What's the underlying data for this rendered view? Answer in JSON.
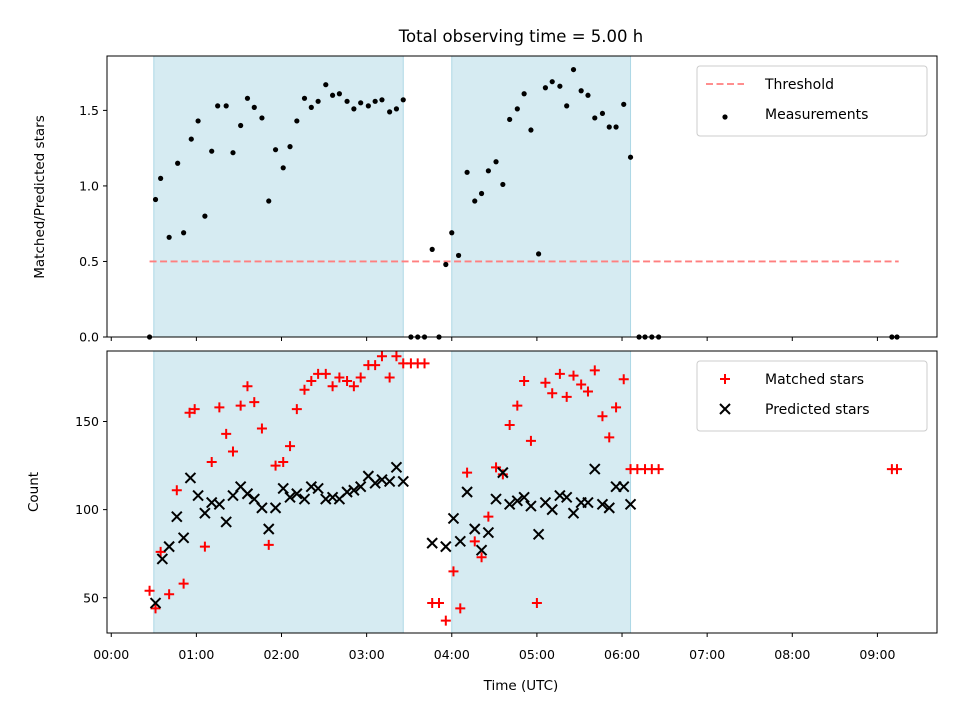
{
  "title": "Total observing time = 5.00 h",
  "colors": {
    "shade": "#add8e6",
    "threshold": "#ff7f7f",
    "measurement": "#000000",
    "matched": "#ff0000",
    "predicted": "#000000"
  },
  "chart_data": [
    {
      "type": "scatter",
      "panel": "top",
      "ylabel": "Matched/Predicted stars",
      "ylim": [
        0,
        1.86
      ],
      "yticks": [
        0.0,
        0.5,
        1.0,
        1.5
      ],
      "ytick_labels": [
        "0.0",
        "0.5",
        "1.0",
        "1.5"
      ],
      "xlim": [
        -0.05,
        9.7
      ],
      "legend": {
        "position": "top-right",
        "entries": [
          "Threshold",
          "Measurements"
        ]
      },
      "observing_windows": [
        [
          0.5,
          3.43
        ],
        [
          4.0,
          6.1
        ]
      ],
      "threshold": {
        "name": "Threshold",
        "value": 0.5,
        "x_range": [
          0.45,
          9.25
        ]
      },
      "series": [
        {
          "name": "Measurements",
          "points": [
            [
              0.45,
              0.0
            ],
            [
              0.52,
              0.91
            ],
            [
              0.58,
              1.05
            ],
            [
              0.68,
              0.66
            ],
            [
              0.78,
              1.15
            ],
            [
              0.85,
              0.69
            ],
            [
              0.94,
              1.31
            ],
            [
              1.02,
              1.43
            ],
            [
              1.1,
              0.8
            ],
            [
              1.18,
              1.23
            ],
            [
              1.25,
              1.53
            ],
            [
              1.35,
              1.53
            ],
            [
              1.43,
              1.22
            ],
            [
              1.52,
              1.4
            ],
            [
              1.6,
              1.58
            ],
            [
              1.68,
              1.52
            ],
            [
              1.77,
              1.45
            ],
            [
              1.85,
              0.9
            ],
            [
              1.93,
              1.24
            ],
            [
              2.02,
              1.12
            ],
            [
              2.1,
              1.26
            ],
            [
              2.18,
              1.43
            ],
            [
              2.27,
              1.58
            ],
            [
              2.35,
              1.52
            ],
            [
              2.43,
              1.56
            ],
            [
              2.52,
              1.67
            ],
            [
              2.6,
              1.6
            ],
            [
              2.68,
              1.61
            ],
            [
              2.77,
              1.56
            ],
            [
              2.85,
              1.51
            ],
            [
              2.93,
              1.55
            ],
            [
              3.02,
              1.53
            ],
            [
              3.1,
              1.56
            ],
            [
              3.18,
              1.57
            ],
            [
              3.27,
              1.49
            ],
            [
              3.35,
              1.51
            ],
            [
              3.43,
              1.57
            ],
            [
              3.52,
              0.0
            ],
            [
              3.6,
              0.0
            ],
            [
              3.68,
              0.0
            ],
            [
              3.77,
              0.58
            ],
            [
              3.85,
              0.0
            ],
            [
              3.93,
              0.48
            ],
            [
              4.0,
              0.69
            ],
            [
              4.08,
              0.54
            ],
            [
              4.18,
              1.09
            ],
            [
              4.27,
              0.9
            ],
            [
              4.35,
              0.95
            ],
            [
              4.43,
              1.1
            ],
            [
              4.52,
              1.16
            ],
            [
              4.6,
              1.01
            ],
            [
              4.68,
              1.44
            ],
            [
              4.77,
              1.51
            ],
            [
              4.85,
              1.61
            ],
            [
              4.93,
              1.37
            ],
            [
              5.02,
              0.55
            ],
            [
              5.1,
              1.65
            ],
            [
              5.18,
              1.69
            ],
            [
              5.27,
              1.66
            ],
            [
              5.35,
              1.53
            ],
            [
              5.43,
              1.77
            ],
            [
              5.52,
              1.63
            ],
            [
              5.6,
              1.6
            ],
            [
              5.68,
              1.45
            ],
            [
              5.77,
              1.48
            ],
            [
              5.85,
              1.39
            ],
            [
              5.93,
              1.39
            ],
            [
              6.02,
              1.54
            ],
            [
              6.1,
              1.19
            ],
            [
              6.2,
              0.0
            ],
            [
              6.27,
              0.0
            ],
            [
              6.35,
              0.0
            ],
            [
              6.43,
              0.0
            ],
            [
              9.17,
              0.0
            ],
            [
              9.23,
              0.0
            ]
          ]
        }
      ]
    },
    {
      "type": "scatter",
      "panel": "bottom",
      "xlabel": "Time (UTC)",
      "ylabel": "Count",
      "ylim": [
        30,
        190
      ],
      "yticks": [
        50,
        100,
        150
      ],
      "ytick_labels": [
        "50",
        "100",
        "150"
      ],
      "xlim": [
        -0.05,
        9.7
      ],
      "xticks": [
        0,
        1,
        2,
        3,
        4,
        5,
        6,
        7,
        8,
        9
      ],
      "xtick_labels": [
        "00:00",
        "01:00",
        "02:00",
        "03:00",
        "04:00",
        "05:00",
        "06:00",
        "07:00",
        "08:00",
        "09:00"
      ],
      "legend": {
        "position": "top-right",
        "entries": [
          "Matched stars",
          "Predicted stars"
        ]
      },
      "observing_windows": [
        [
          0.5,
          3.43
        ],
        [
          4.0,
          6.1
        ]
      ],
      "series": [
        {
          "name": "Matched stars",
          "marker": "+",
          "points": [
            [
              0.45,
              54
            ],
            [
              0.52,
              44
            ],
            [
              0.58,
              76
            ],
            [
              0.68,
              52
            ],
            [
              0.77,
              111
            ],
            [
              0.85,
              58
            ],
            [
              0.92,
              155
            ],
            [
              0.98,
              157
            ],
            [
              1.1,
              79
            ],
            [
              1.18,
              127
            ],
            [
              1.27,
              158
            ],
            [
              1.35,
              143
            ],
            [
              1.43,
              133
            ],
            [
              1.52,
              159
            ],
            [
              1.6,
              170
            ],
            [
              1.68,
              161
            ],
            [
              1.77,
              146
            ],
            [
              1.85,
              80
            ],
            [
              1.93,
              125
            ],
            [
              2.02,
              127
            ],
            [
              2.1,
              136
            ],
            [
              2.18,
              157
            ],
            [
              2.27,
              168
            ],
            [
              2.35,
              173
            ],
            [
              2.43,
              177
            ],
            [
              2.52,
              177
            ],
            [
              2.6,
              170
            ],
            [
              2.68,
              175
            ],
            [
              2.77,
              173
            ],
            [
              2.85,
              170
            ],
            [
              2.93,
              175
            ],
            [
              3.02,
              182
            ],
            [
              3.1,
              182
            ],
            [
              3.18,
              187
            ],
            [
              3.27,
              175
            ],
            [
              3.35,
              187
            ],
            [
              3.43,
              183
            ],
            [
              3.52,
              183
            ],
            [
              3.6,
              183
            ],
            [
              3.68,
              183
            ],
            [
              3.77,
              47
            ],
            [
              3.85,
              47
            ],
            [
              3.93,
              37
            ],
            [
              4.02,
              65
            ],
            [
              4.1,
              44
            ],
            [
              4.18,
              121
            ],
            [
              4.27,
              82
            ],
            [
              4.35,
              73
            ],
            [
              4.43,
              96
            ],
            [
              4.52,
              124
            ],
            [
              4.6,
              120
            ],
            [
              4.68,
              148
            ],
            [
              4.77,
              159
            ],
            [
              4.85,
              173
            ],
            [
              4.93,
              139
            ],
            [
              5.0,
              47
            ],
            [
              5.1,
              172
            ],
            [
              5.18,
              166
            ],
            [
              5.27,
              177
            ],
            [
              5.35,
              164
            ],
            [
              5.43,
              176
            ],
            [
              5.52,
              171
            ],
            [
              5.6,
              167
            ],
            [
              5.68,
              179
            ],
            [
              5.77,
              153
            ],
            [
              5.85,
              141
            ],
            [
              5.93,
              158
            ],
            [
              6.02,
              174
            ],
            [
              6.1,
              123
            ],
            [
              6.18,
              123
            ],
            [
              6.27,
              123
            ],
            [
              6.35,
              123
            ],
            [
              6.43,
              123
            ],
            [
              9.17,
              123
            ],
            [
              9.23,
              123
            ]
          ]
        },
        {
          "name": "Predicted stars",
          "marker": "x",
          "points": [
            [
              0.52,
              47
            ],
            [
              0.6,
              72
            ],
            [
              0.68,
              79
            ],
            [
              0.77,
              96
            ],
            [
              0.85,
              84
            ],
            [
              0.93,
              118
            ],
            [
              1.02,
              108
            ],
            [
              1.1,
              98
            ],
            [
              1.18,
              104
            ],
            [
              1.27,
              103
            ],
            [
              1.35,
              93
            ],
            [
              1.43,
              108
            ],
            [
              1.52,
              113
            ],
            [
              1.6,
              109
            ],
            [
              1.68,
              106
            ],
            [
              1.77,
              101
            ],
            [
              1.85,
              89
            ],
            [
              1.93,
              101
            ],
            [
              2.02,
              112
            ],
            [
              2.1,
              107
            ],
            [
              2.18,
              109
            ],
            [
              2.27,
              106
            ],
            [
              2.35,
              113
            ],
            [
              2.43,
              112
            ],
            [
              2.52,
              106
            ],
            [
              2.6,
              107
            ],
            [
              2.68,
              106
            ],
            [
              2.77,
              110
            ],
            [
              2.85,
              111
            ],
            [
              2.93,
              113
            ],
            [
              3.02,
              119
            ],
            [
              3.1,
              115
            ],
            [
              3.18,
              117
            ],
            [
              3.27,
              116
            ],
            [
              3.35,
              124
            ],
            [
              3.43,
              116
            ],
            [
              3.77,
              81
            ],
            [
              3.93,
              79
            ],
            [
              4.02,
              95
            ],
            [
              4.1,
              82
            ],
            [
              4.18,
              110
            ],
            [
              4.27,
              89
            ],
            [
              4.35,
              77
            ],
            [
              4.43,
              87
            ],
            [
              4.52,
              106
            ],
            [
              4.6,
              121
            ],
            [
              4.68,
              103
            ],
            [
              4.77,
              105
            ],
            [
              4.85,
              107
            ],
            [
              4.93,
              102
            ],
            [
              5.02,
              86
            ],
            [
              5.1,
              104
            ],
            [
              5.18,
              100
            ],
            [
              5.27,
              108
            ],
            [
              5.35,
              107
            ],
            [
              5.43,
              98
            ],
            [
              5.52,
              104
            ],
            [
              5.6,
              104
            ],
            [
              5.68,
              123
            ],
            [
              5.77,
              103
            ],
            [
              5.85,
              101
            ],
            [
              5.93,
              113
            ],
            [
              6.02,
              113
            ],
            [
              6.1,
              103
            ]
          ]
        }
      ]
    }
  ]
}
